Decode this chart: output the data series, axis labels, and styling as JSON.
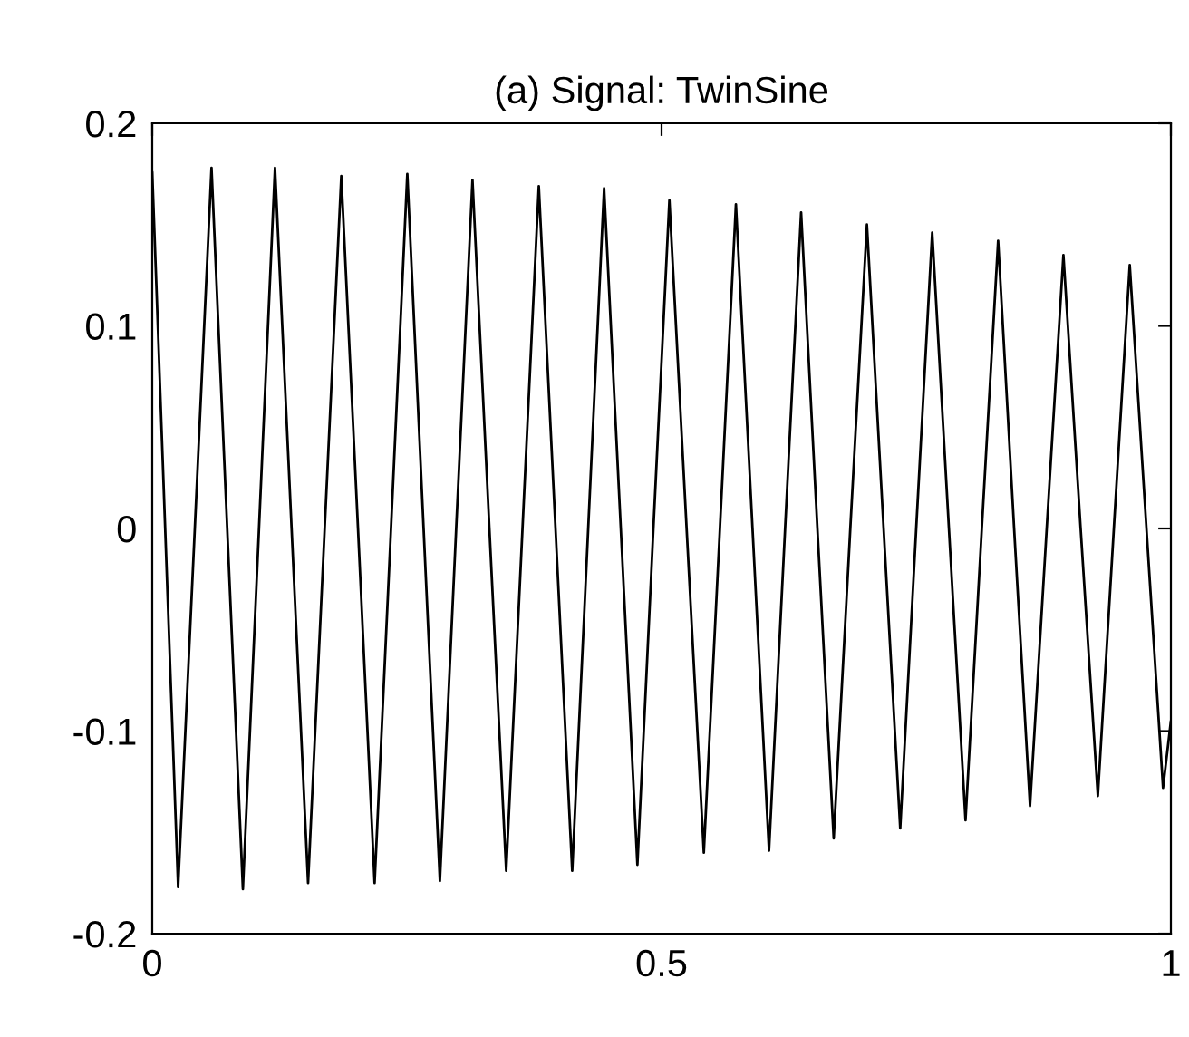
{
  "chart_data": {
    "type": "line",
    "title": "(a) Signal: TwinSine",
    "x": [
      0,
      0.0127,
      0.0254,
      0.0418,
      0.0582,
      0.0736,
      0.089,
      0.1048,
      0.1205,
      0.1368,
      0.153,
      0.1693,
      0.1856,
      0.202,
      0.2183,
      0.2344,
      0.2504,
      0.2664,
      0.2824,
      0.2984,
      0.3144,
      0.331,
      0.3475,
      0.3635,
      0.3795,
      0.3959,
      0.4123,
      0.428,
      0.4436,
      0.46,
      0.4763,
      0.492,
      0.5077,
      0.5246,
      0.5415,
      0.5573,
      0.573,
      0.5893,
      0.6055,
      0.6213,
      0.637,
      0.653,
      0.669,
      0.6853,
      0.7016,
      0.718,
      0.7343,
      0.75,
      0.7657,
      0.7821,
      0.7984,
      0.8144,
      0.8304,
      0.8461,
      0.8617,
      0.8781,
      0.8945,
      0.9114,
      0.9283,
      0.944,
      0.9596,
      0.976,
      0.9923,
      1.0
    ],
    "series": [
      {
        "color": "#000000",
        "values": [
          0.176,
          0,
          -0.177,
          0,
          0.178,
          0,
          -0.178,
          0,
          0.178,
          0,
          -0.175,
          0,
          0.174,
          0,
          -0.175,
          0,
          0.175,
          0,
          -0.174,
          0,
          0.172,
          0,
          -0.169,
          0,
          0.169,
          0,
          -0.169,
          0,
          0.168,
          0,
          -0.166,
          0,
          0.162,
          0,
          -0.16,
          0,
          0.16,
          0,
          -0.159,
          0,
          0.156,
          0,
          -0.153,
          0,
          0.15,
          0,
          -0.148,
          0,
          0.146,
          0,
          -0.144,
          0,
          0.142,
          0,
          -0.137,
          0,
          0.135,
          0,
          -0.132,
          0,
          0.13,
          0,
          -0.128,
          -0.095
        ]
      }
    ],
    "xlim": [
      0,
      1
    ],
    "xticks": [
      0,
      0.5,
      1
    ],
    "ylim": [
      -0.2,
      0.2
    ],
    "yticks": [
      -0.2,
      -0.1,
      0,
      0.1,
      0.2
    ],
    "grid": false,
    "marker": "none",
    "line_style": "solid"
  }
}
